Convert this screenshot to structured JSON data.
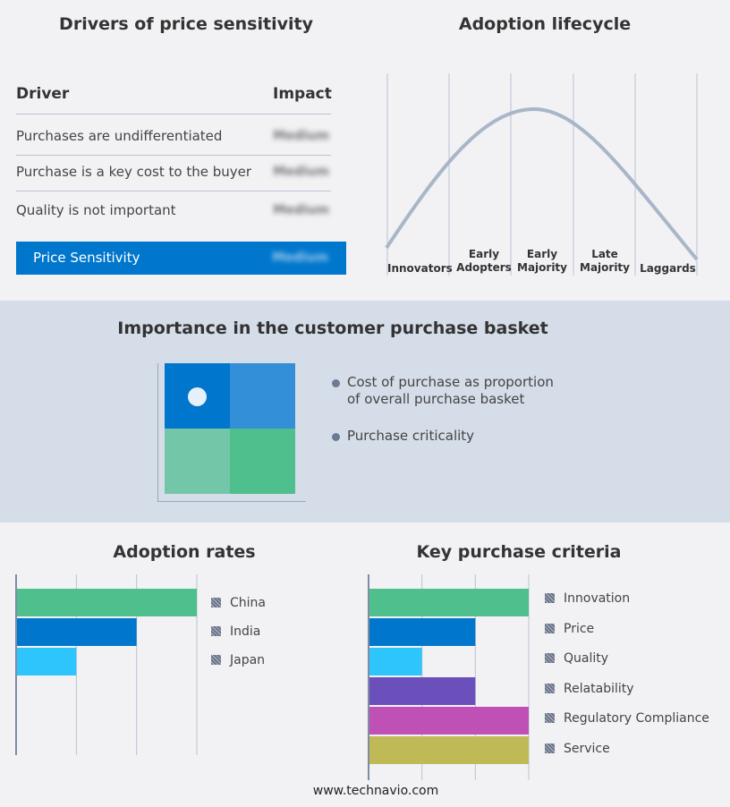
{
  "drivers": {
    "title": "Drivers of price sensitivity",
    "header_driver": "Driver",
    "header_impact": "Impact",
    "rows": [
      {
        "driver": "Purchases are undifferentiated",
        "impact": "Medium"
      },
      {
        "driver": "Purchase is a key cost to the buyer",
        "impact": "Medium"
      },
      {
        "driver": "Quality is not important",
        "impact": "Medium"
      }
    ],
    "summary": {
      "label": "Price Sensitivity",
      "impact": "Medium"
    }
  },
  "lifecycle": {
    "title": "Adoption lifecycle",
    "stages": [
      "Innovators",
      "Early Adopters",
      "Early Majority",
      "Late Majority",
      "Laggards"
    ]
  },
  "basket": {
    "title": "Importance in the customer purchase basket",
    "bullets": [
      "Cost of purchase as proportion of overall purchase basket",
      "Purchase criticality"
    ]
  },
  "chart_data": [
    {
      "type": "bar",
      "title": "Adoption rates",
      "categories": [
        "China",
        "India",
        "Japan"
      ],
      "values": [
        3,
        2,
        1
      ],
      "xlim": [
        0,
        3
      ],
      "grid": true,
      "legend": "right",
      "colors": [
        "#4fbf8e",
        "#0077cc",
        "#2ec4fc"
      ]
    },
    {
      "type": "bar",
      "title": "Key purchase criteria",
      "categories": [
        "Innovation",
        "Price",
        "Quality",
        "Relatability",
        "Regulatory Compliance",
        "Service"
      ],
      "values": [
        3,
        2,
        1,
        2,
        3,
        3
      ],
      "xlim": [
        0,
        3
      ],
      "grid": true,
      "legend": "right",
      "colors": [
        "#4fbf8e",
        "#0077cc",
        "#2ec4fc",
        "#6b50bc",
        "#bf50b5",
        "#bfba55"
      ]
    }
  ],
  "footer": "www.technavio.com"
}
